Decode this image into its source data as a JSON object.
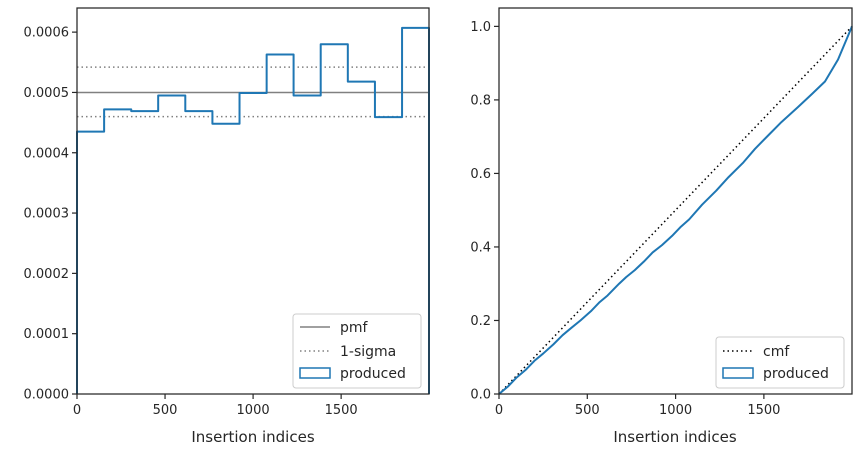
{
  "chart_data": [
    {
      "type": "step",
      "xlabel": "Insertion indices",
      "ylabel": "",
      "xlim": [
        0,
        1999
      ],
      "ylim": [
        0,
        0.00064
      ],
      "xticks": [
        0,
        500,
        1000,
        1500
      ],
      "xtick_labels": [
        "0",
        "500",
        "1000",
        "1500"
      ],
      "yticks": [
        0,
        0.0001,
        0.0002,
        0.0003,
        0.0004,
        0.0005,
        0.0006
      ],
      "ytick_labels": [
        "0.0000",
        "0.0001",
        "0.0002",
        "0.0003",
        "0.0004",
        "0.0005",
        "0.0006"
      ],
      "grid": false,
      "legend_position": "lower-right",
      "hlines": [
        {
          "name": "pmf",
          "y": 0.0005,
          "style": "solid",
          "color": "#808080"
        },
        {
          "name": "1-sigma",
          "y": 0.000542,
          "style": "dotted",
          "color": "#808080"
        },
        {
          "name": "1-sigma",
          "y": 0.00046,
          "style": "dotted",
          "color": "#808080"
        }
      ],
      "series": [
        {
          "name": "produced",
          "color": "#1f77b4",
          "bin_edges": [
            0,
            154,
            308,
            461,
            615,
            769,
            923,
            1077,
            1230,
            1384,
            1538,
            1692,
            1846,
            1999
          ],
          "values": [
            0.000435,
            0.000472,
            0.000469,
            0.000495,
            0.000469,
            0.000448,
            0.000499,
            0.000563,
            0.000495,
            0.00058,
            0.000518,
            0.000459,
            0.000607
          ]
        }
      ],
      "legend": [
        {
          "label": "pmf",
          "kind": "solid-line"
        },
        {
          "label": "1-sigma",
          "kind": "dotted-line"
        },
        {
          "label": "produced",
          "kind": "box"
        }
      ]
    },
    {
      "type": "line",
      "xlabel": "Insertion indices",
      "ylabel": "",
      "xlim": [
        0,
        1999
      ],
      "ylim": [
        0,
        1.05
      ],
      "xticks": [
        0,
        500,
        1000,
        1500
      ],
      "xtick_labels": [
        "0",
        "500",
        "1000",
        "1500"
      ],
      "yticks": [
        0,
        0.2,
        0.4,
        0.6,
        0.8,
        1.0
      ],
      "ytick_labels": [
        "0.0",
        "0.2",
        "0.4",
        "0.6",
        "0.8",
        "1.0"
      ],
      "grid": false,
      "legend_position": "lower-right",
      "series": [
        {
          "name": "cmf",
          "style": "dotted",
          "color": "#000000",
          "x": [
            0,
            1999
          ],
          "y": [
            0,
            1.0
          ]
        },
        {
          "name": "produced",
          "style": "solid",
          "color": "#1f77b4",
          "x": [
            0,
            50,
            100,
            154,
            200,
            250,
            308,
            360,
            410,
            461,
            520,
            570,
            615,
            680,
            720,
            769,
            820,
            870,
            923,
            980,
            1030,
            1077,
            1150,
            1230,
            1300,
            1384,
            1450,
            1538,
            1600,
            1692,
            1770,
            1846,
            1920,
            1999
          ],
          "y": [
            0,
            0.02,
            0.045,
            0.067,
            0.09,
            0.11,
            0.135,
            0.16,
            0.18,
            0.2,
            0.225,
            0.25,
            0.268,
            0.3,
            0.318,
            0.337,
            0.36,
            0.385,
            0.405,
            0.43,
            0.455,
            0.475,
            0.515,
            0.553,
            0.59,
            0.63,
            0.667,
            0.71,
            0.74,
            0.78,
            0.815,
            0.85,
            0.91,
            1.0
          ]
        }
      ],
      "legend": [
        {
          "label": "cmf",
          "kind": "dotted-line"
        },
        {
          "label": "produced",
          "kind": "box"
        }
      ]
    }
  ]
}
